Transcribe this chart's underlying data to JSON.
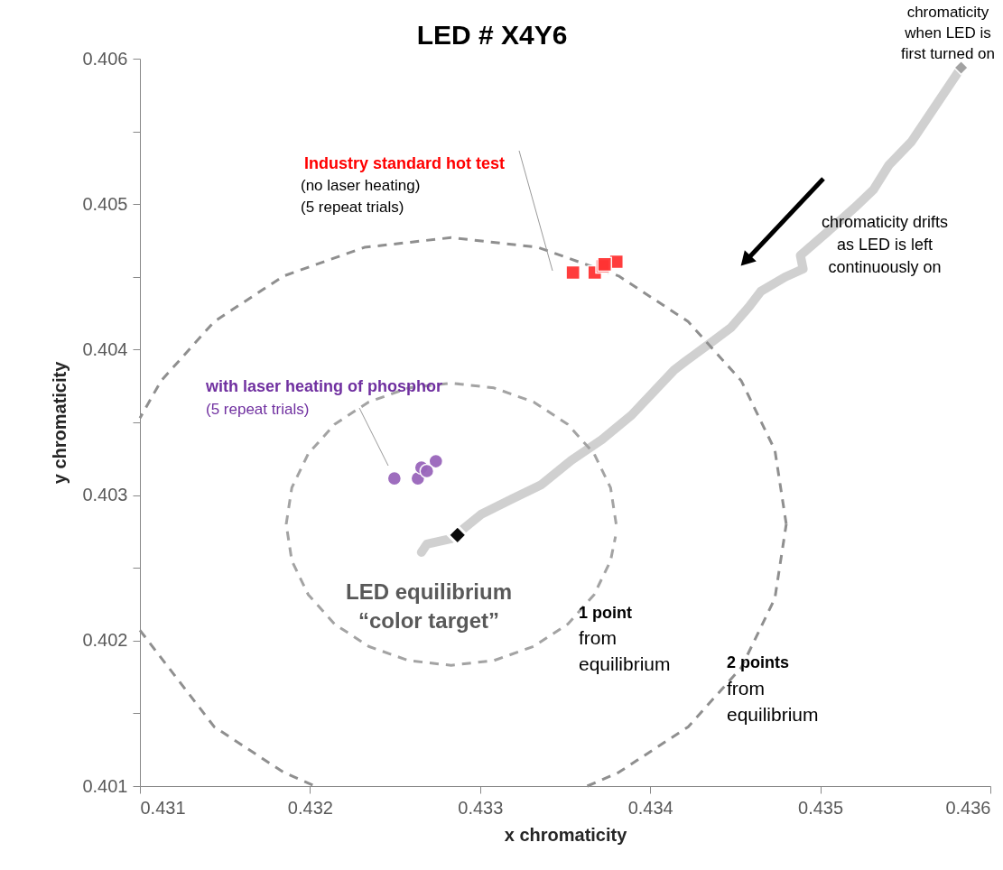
{
  "chart_data": {
    "type": "scatter",
    "title": "LED # X4Y6",
    "xlabel": "x chromaticity",
    "ylabel": "y chromaticity",
    "xlim": [
      0.431,
      0.436
    ],
    "ylim": [
      0.401,
      0.406
    ],
    "xticks": [
      0.431,
      0.432,
      0.433,
      0.434,
      0.435,
      0.436
    ],
    "yticks": [
      0.401,
      {
        "value": 0.4015,
        "label": null
      },
      0.402,
      {
        "value": 0.4025,
        "label": null
      },
      0.403,
      {
        "value": 0.4035,
        "label": null
      },
      0.404,
      {
        "value": 0.4045,
        "label": null
      },
      0.405,
      {
        "value": 0.4055,
        "label": null
      },
      0.406
    ],
    "grid": false,
    "series": [
      {
        "type": "line",
        "color": "#c8c8c8",
        "marker": "none",
        "line_style": "solid",
        "x": [
          0.435828,
          0.435536,
          0.435403,
          0.435313,
          0.435202,
          0.435042,
          0.434883,
          0.434899,
          0.434793,
          0.43465,
          0.434581,
          0.434475,
          0.434369,
          0.43421,
          0.434141,
          0.433891,
          0.433716,
          0.433536,
          0.433361,
          0.433186,
          0.433005,
          0.43283,
          0.432687,
          0.432655
        ],
        "values": [
          0.405938,
          0.405429,
          0.405268,
          0.4051,
          0.404976,
          0.404809,
          0.404648,
          0.404555,
          0.404499,
          0.4044,
          0.404294,
          0.404151,
          0.404058,
          0.403922,
          0.40386,
          0.40355,
          0.403382,
          0.403239,
          0.403072,
          0.402973,
          0.402867,
          0.4027,
          0.402663,
          0.402607
        ]
      },
      {
        "type": "line",
        "color": "#a3a3a3",
        "marker": "none",
        "line_style": "dashed",
        "x": [
          0.4338,
          0.433767,
          0.43367,
          0.433516,
          0.433315,
          0.433081,
          0.43283,
          0.432579,
          0.432345,
          0.432144,
          0.43199,
          0.431893,
          0.43186,
          0.431893,
          0.43199,
          0.432144,
          0.432345,
          0.432579,
          0.43283,
          0.433081,
          0.433315,
          0.433516,
          0.43367,
          0.433767,
          0.433796
        ],
        "values": [
          0.4028,
          0.403051,
          0.403285,
          0.403486,
          0.40364,
          0.403737,
          0.40377,
          0.403737,
          0.40364,
          0.403486,
          0.403285,
          0.403051,
          0.4028,
          0.402549,
          0.402315,
          0.402114,
          0.40196,
          0.401863,
          0.40183,
          0.401863,
          0.40196,
          0.402114,
          0.402315,
          0.402549,
          0.402715
        ]
      },
      {
        "type": "line",
        "color": "#8f8f8f",
        "marker": "none",
        "line_style": "dashed",
        "x": [
          0.4348,
          0.434733,
          0.434536,
          0.434223,
          0.433815,
          0.43334,
          0.43283,
          0.43232,
          0.431845,
          0.431437,
          0.431124,
          0.431,
          null,
          0.431,
          0.431437,
          0.431845,
          0.43203,
          null,
          0.43363,
          0.433815,
          0.434223,
          0.434536,
          0.434733,
          0.4348
        ],
        "values": [
          0.4028,
          0.40331,
          0.403785,
          0.404193,
          0.404506,
          0.404703,
          0.40477,
          0.404703,
          0.404506,
          0.404193,
          0.403785,
          0.403529,
          null,
          0.402071,
          0.401407,
          0.401094,
          0.401,
          null,
          0.401,
          0.401094,
          0.401407,
          0.401815,
          0.40229,
          0.4028
        ]
      },
      {
        "type": "scatter",
        "color": "#a0a0a0",
        "marker": "diamond",
        "x": [
          0.435828
        ],
        "values": [
          0.405938
        ]
      },
      {
        "type": "scatter",
        "color": "#ff3333",
        "marker": "square",
        "x": [
          0.433546,
          0.433674,
          0.433721,
          0.433801,
          0.433732
        ],
        "values": [
          0.40453,
          0.40453,
          0.404573,
          0.404604,
          0.404586
        ]
      },
      {
        "type": "scatter",
        "color": "#9966bb",
        "marker": "circle",
        "x": [
          0.432496,
          0.432634,
          0.432655,
          0.43274,
          0.432687
        ],
        "values": [
          0.403115,
          0.403115,
          0.40319,
          0.403233,
          0.403165
        ]
      },
      {
        "type": "scatter",
        "color": "#000000",
        "marker": "diamond",
        "x": [
          0.432867
        ],
        "values": [
          0.402725
        ]
      }
    ],
    "annotations": [
      "chromaticity\nwhen LED is\nfirst turned on",
      "Industry standard hot test",
      "(no laser heating)\n(5 repeat trials)",
      "with laser heating of phosphor",
      "(5 repeat trials)",
      "LED equilibrium\n“color target”",
      "1 point",
      "from\nequilibrium",
      "2 points",
      "from\nequilibrium",
      "chromaticity drifts\nas LED is left\ncontinuously on"
    ]
  }
}
